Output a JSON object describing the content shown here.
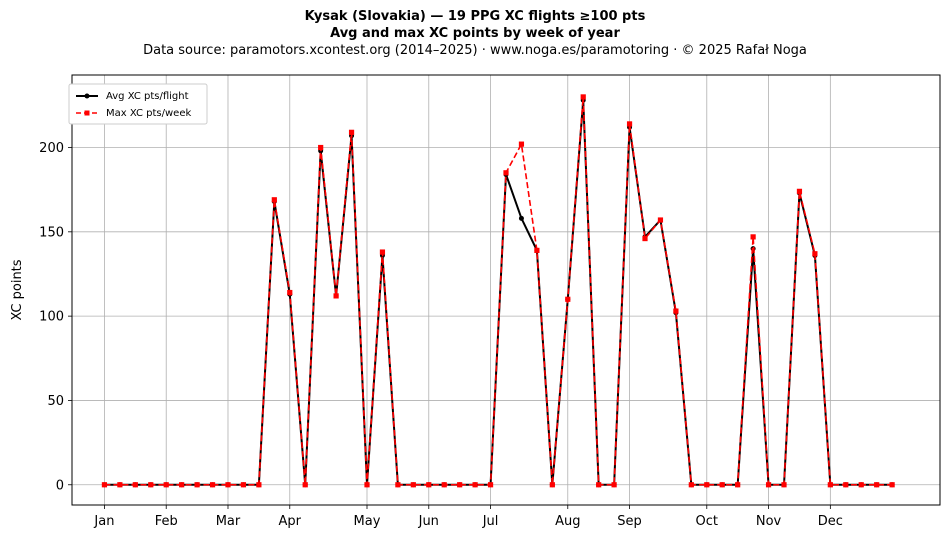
{
  "header": {
    "title_line1": "Kysak (Slovakia)  —  19 PPG XC flights ≥100 pts",
    "title_line2": "Avg and max XC points by week of year",
    "subtitle": "Data source: paramotors.xcontest.org (2014–2025)  ·  www.noga.es/paramotoring  ·  © 2025 Rafał Noga"
  },
  "chart_data": {
    "type": "line",
    "xlabel": "",
    "ylabel": "XC points",
    "x_tick_labels": [
      "Jan",
      "Feb",
      "Mar",
      "Apr",
      "May",
      "Jun",
      "Jul",
      "Aug",
      "Sep",
      "Oct",
      "Nov",
      "Dec"
    ],
    "x_tick_weeks": [
      1,
      5,
      9,
      13,
      18,
      22,
      26,
      31,
      35,
      40,
      44,
      48
    ],
    "x_range": [
      -1.1,
      55.1
    ],
    "ylim": [
      -12,
      243
    ],
    "y_ticks": [
      0,
      50,
      100,
      150,
      200
    ],
    "grid": true,
    "legend_position": "top-left",
    "x": [
      1,
      2,
      3,
      4,
      5,
      6,
      7,
      8,
      9,
      10,
      11,
      12,
      13,
      14,
      15,
      16,
      17,
      18,
      19,
      20,
      21,
      22,
      23,
      24,
      25,
      26,
      27,
      28,
      29,
      30,
      31,
      32,
      33,
      34,
      35,
      36,
      37,
      38,
      39,
      40,
      41,
      42,
      43,
      44,
      45,
      46,
      47,
      48,
      49,
      50,
      51,
      52
    ],
    "series": [
      {
        "name": "Avg XC pts/flight",
        "color": "#000000",
        "line_style": "solid",
        "marker": "circle",
        "values": [
          0,
          0,
          0,
          0,
          0,
          0,
          0,
          0,
          0,
          0,
          0,
          168,
          113,
          0,
          198,
          112,
          207,
          0,
          136,
          0,
          0,
          0,
          0,
          0,
          0,
          0,
          184,
          158,
          139,
          0,
          110,
          228,
          0,
          0,
          212,
          147,
          157,
          102,
          0,
          0,
          0,
          0,
          140,
          0,
          0,
          173,
          136,
          0,
          0,
          0,
          0,
          0
        ]
      },
      {
        "name": "Max XC pts/week",
        "color": "#ff0000",
        "line_style": "dashed",
        "marker": "square",
        "values": [
          0,
          0,
          0,
          0,
          0,
          0,
          0,
          0,
          0,
          0,
          0,
          169,
          114,
          0,
          200,
          112,
          209,
          0,
          138,
          0,
          0,
          0,
          0,
          0,
          0,
          0,
          185,
          202,
          139,
          0,
          110,
          230,
          0,
          0,
          214,
          146,
          157,
          103,
          0,
          0,
          0,
          0,
          147,
          0,
          0,
          174,
          137,
          0,
          0,
          0,
          0,
          0
        ]
      }
    ]
  },
  "legend": {
    "avg_label": "Avg XC pts/flight",
    "max_label": "Max XC pts/week"
  }
}
